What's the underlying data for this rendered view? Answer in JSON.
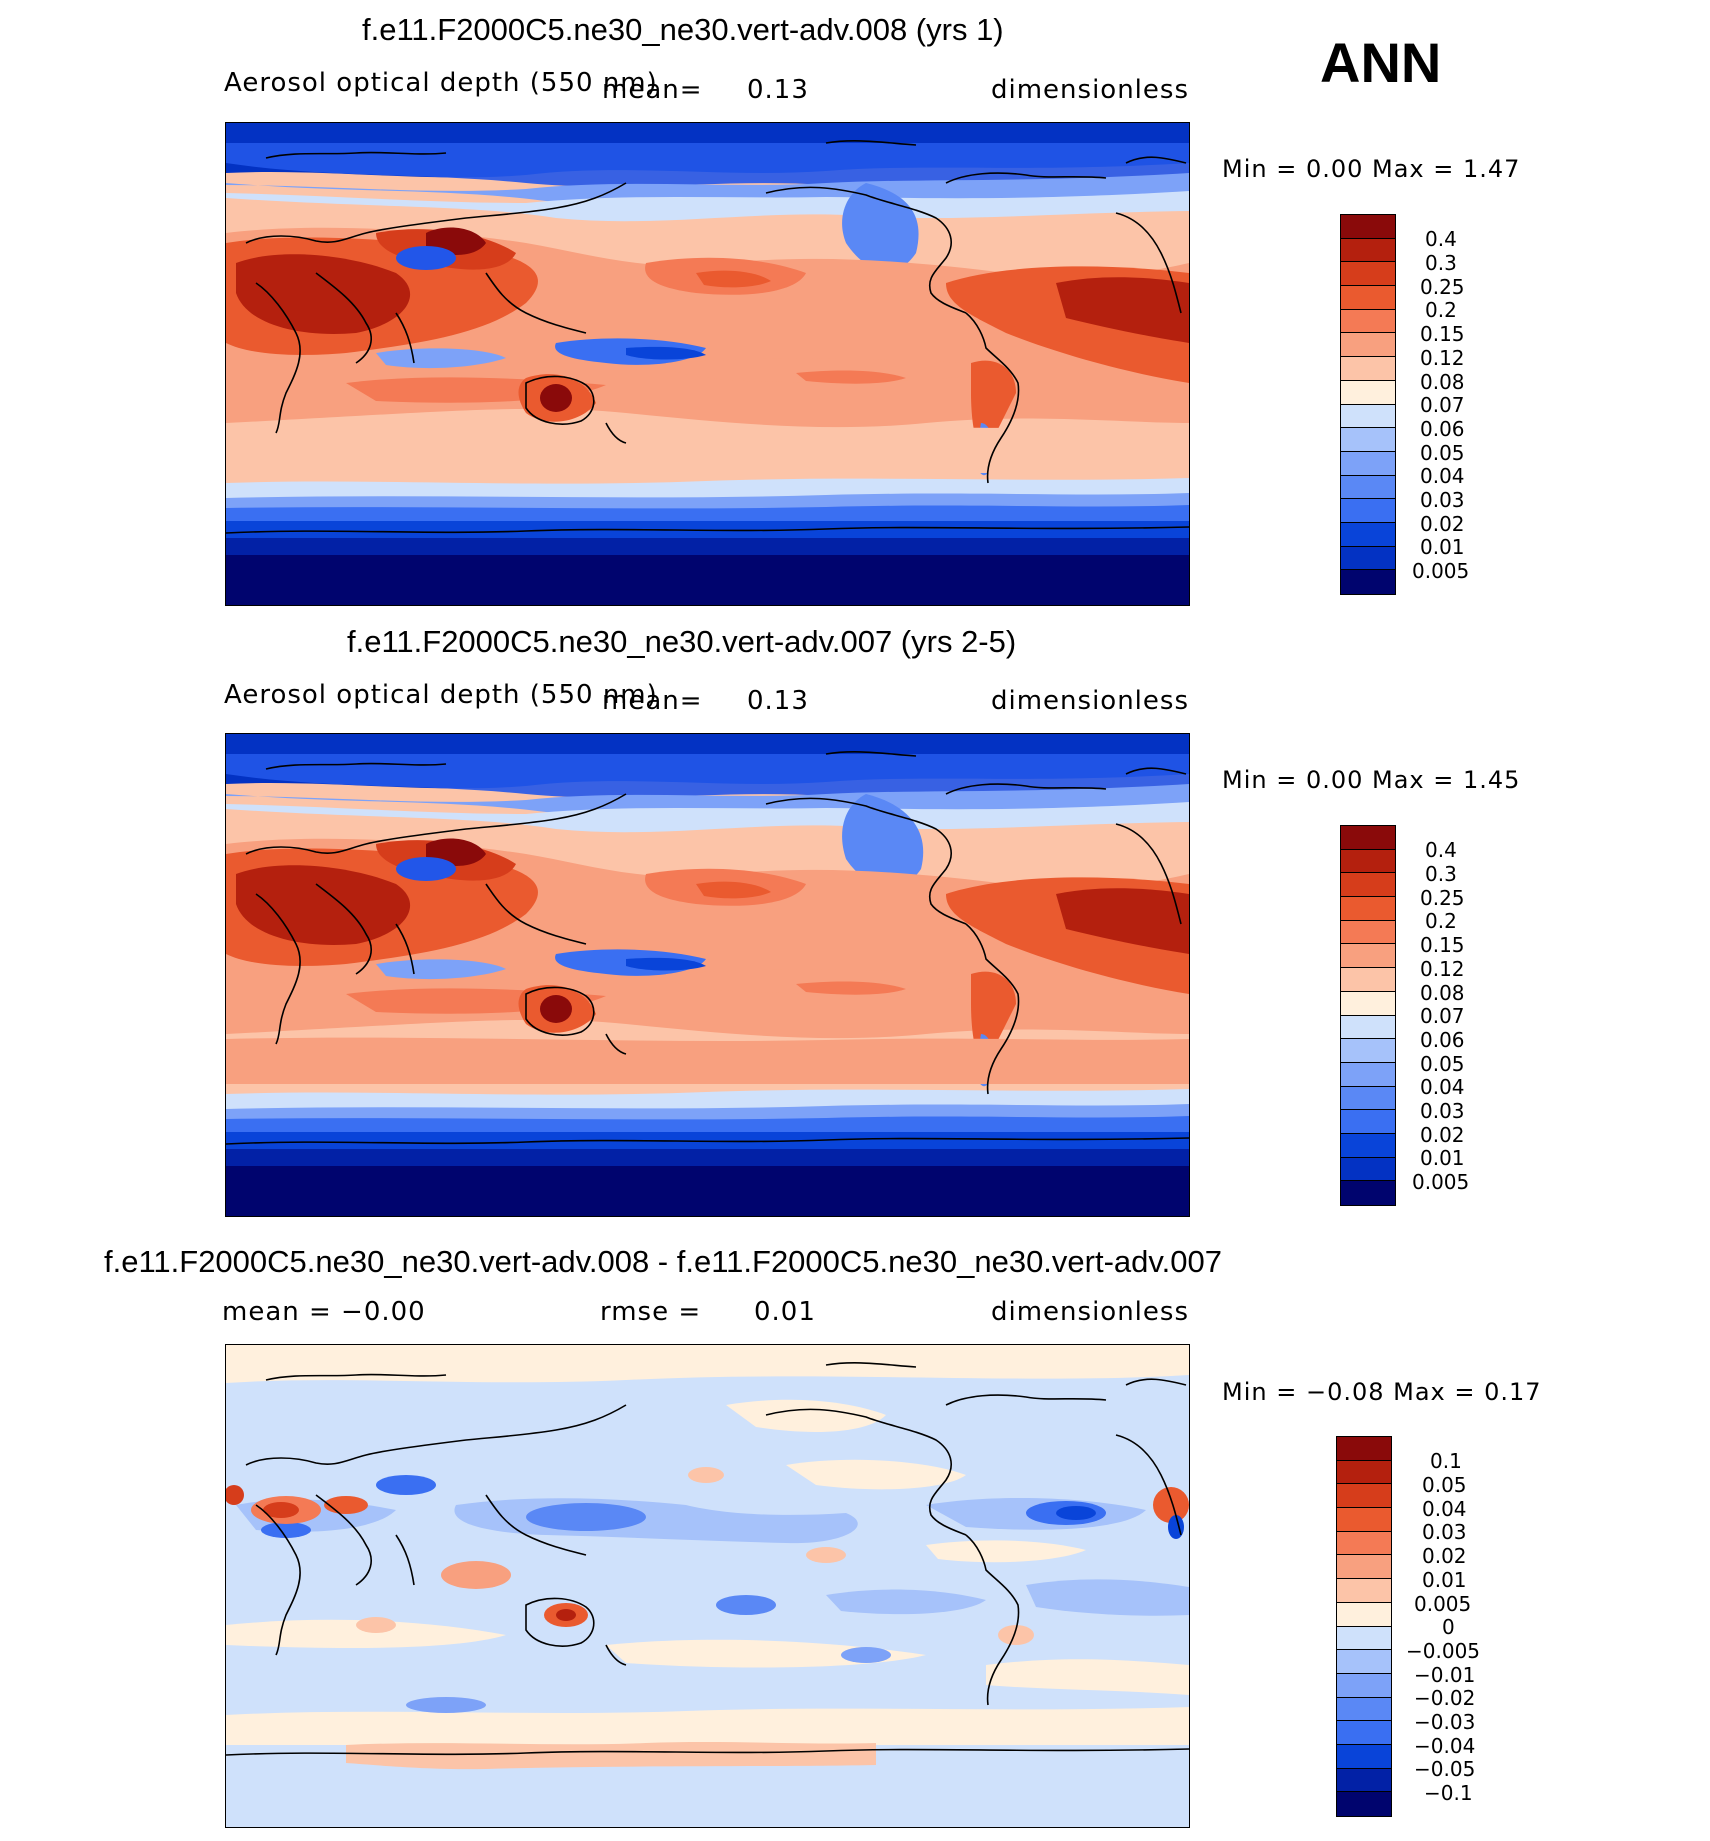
{
  "season": "ANN",
  "palettes": {
    "aod": [
      "#00046e",
      "#0221a6",
      "#0332c3",
      "#0944d9",
      "#2256e9",
      "#3a6ff2",
      "#5a88f5",
      "#7da2f8",
      "#a6c2fa",
      "#cfe1fb",
      "#fff0dd",
      "#fcc4a8",
      "#f8a07f",
      "#f47a55",
      "#ea5a2f",
      "#d63d1b",
      "#b4200e",
      "#8a0a0a"
    ],
    "diff": [
      "#00046e",
      "#0221a6",
      "#0944d9",
      "#2256e9",
      "#3a6ff2",
      "#5a88f5",
      "#7da2f8",
      "#a6c2fa",
      "#cfe1fb",
      "#ffffff",
      "#fff0dd",
      "#fcc4a8",
      "#f8a07f",
      "#f47a55",
      "#ea5a2f",
      "#d63d1b",
      "#b4200e",
      "#8a0a0a"
    ]
  },
  "panels": [
    {
      "title": "f.e11.F2000C5.ne30_ne30.vert-adv.008 (yrs 1)",
      "left_label": "Aerosol optical depth (550 nm)",
      "mid_label": "mean=",
      "mid_value": "0.13",
      "units": "dimensionless",
      "minmax_text": "Min =     0.00 Max =     1.47",
      "colorbar_labels": [
        "0.4",
        "0.3",
        "0.25",
        "0.2",
        "0.15",
        "0.12",
        "0.08",
        "0.07",
        "0.06",
        "0.05",
        "0.04",
        "0.03",
        "0.02",
        "0.01",
        "0.005"
      ]
    },
    {
      "title": "f.e11.F2000C5.ne30_ne30.vert-adv.007 (yrs 2-5)",
      "left_label": "Aerosol optical depth (550 nm)",
      "mid_label": "mean=",
      "mid_value": "0.13",
      "units": "dimensionless",
      "minmax_text": "Min =     0.00 Max =     1.45",
      "colorbar_labels": [
        "0.4",
        "0.3",
        "0.25",
        "0.2",
        "0.15",
        "0.12",
        "0.08",
        "0.07",
        "0.06",
        "0.05",
        "0.04",
        "0.03",
        "0.02",
        "0.01",
        "0.005"
      ]
    },
    {
      "title": "f.e11.F2000C5.ne30_ne30.vert-adv.008 - f.e11.F2000C5.ne30_ne30.vert-adv.007",
      "left_label": "mean =    −0.00",
      "mid_label": "rmse =",
      "mid_value": "0.01",
      "units": "dimensionless",
      "minmax_text": "Min =   −0.08 Max =     0.17",
      "colorbar_labels": [
        "0.1",
        "0.05",
        "0.04",
        "0.03",
        "0.02",
        "0.01",
        "0.005",
        "0",
        "−0.005",
        "−0.01",
        "−0.02",
        "−0.03",
        "−0.04",
        "−0.05",
        "−0.1"
      ]
    }
  ],
  "chart_data": [
    {
      "type": "heatmap",
      "title": "f.e11.F2000C5.ne30_ne30.vert-adv.008 (yrs 1)",
      "variable": "Aerosol optical depth (550 nm)",
      "units": "dimensionless",
      "mean": 0.13,
      "min": 0.0,
      "max": 1.47,
      "levels": [
        0.005,
        0.01,
        0.02,
        0.03,
        0.04,
        0.05,
        0.06,
        0.07,
        0.08,
        0.12,
        0.15,
        0.2,
        0.25,
        0.3,
        0.4
      ]
    },
    {
      "type": "heatmap",
      "title": "f.e11.F2000C5.ne30_ne30.vert-adv.007 (yrs 2-5)",
      "variable": "Aerosol optical depth (550 nm)",
      "units": "dimensionless",
      "mean": 0.13,
      "min": 0.0,
      "max": 1.45,
      "levels": [
        0.005,
        0.01,
        0.02,
        0.03,
        0.04,
        0.05,
        0.06,
        0.07,
        0.08,
        0.12,
        0.15,
        0.2,
        0.25,
        0.3,
        0.4
      ]
    },
    {
      "type": "heatmap",
      "title": "f.e11.F2000C5.ne30_ne30.vert-adv.008 - f.e11.F2000C5.ne30_ne30.vert-adv.007",
      "units": "dimensionless",
      "mean": -0.0,
      "rmse": 0.01,
      "min": -0.08,
      "max": 0.17,
      "levels": [
        -0.1,
        -0.05,
        -0.04,
        -0.03,
        -0.02,
        -0.01,
        -0.005,
        0,
        0.005,
        0.01,
        0.02,
        0.03,
        0.04,
        0.05,
        0.1
      ]
    }
  ]
}
